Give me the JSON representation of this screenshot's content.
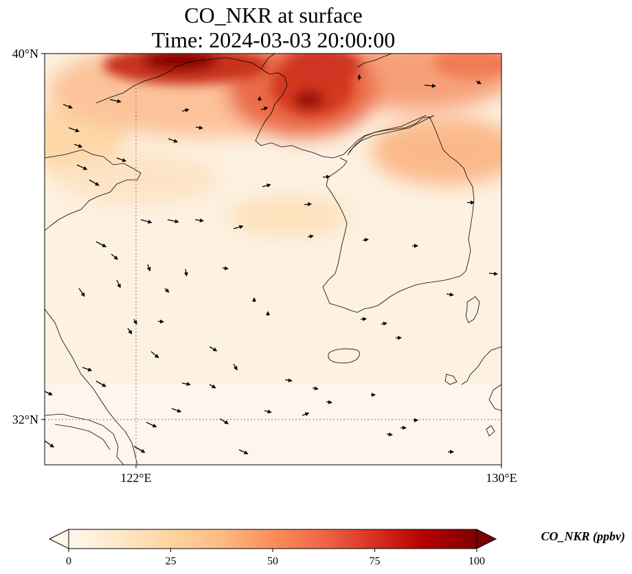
{
  "title": {
    "line1": "CO_NKR at surface",
    "line2": "Time: 2024-03-03 20:00:00"
  },
  "map": {
    "lat_range": [
      31,
      40
    ],
    "lon_range": [
      120,
      130
    ],
    "y_ticks": [
      "40°N",
      "32°N"
    ],
    "x_ticks": [
      "122°E",
      "130°E"
    ],
    "gridlines": "dotted",
    "features": [
      "coastlines",
      "wind-vectors",
      "concentration-field"
    ]
  },
  "colorbar": {
    "label": "CO_NKR (ppbv)",
    "ticks": [
      "0",
      "25",
      "50",
      "75",
      "100"
    ],
    "range": [
      0,
      100
    ],
    "extend": "both",
    "colormap": [
      "#fff7ec",
      "#fee8c8",
      "#fdd49e",
      "#fdbb84",
      "#fc8d59",
      "#ef6548",
      "#d7301f",
      "#b30000",
      "#7f0000"
    ]
  }
}
